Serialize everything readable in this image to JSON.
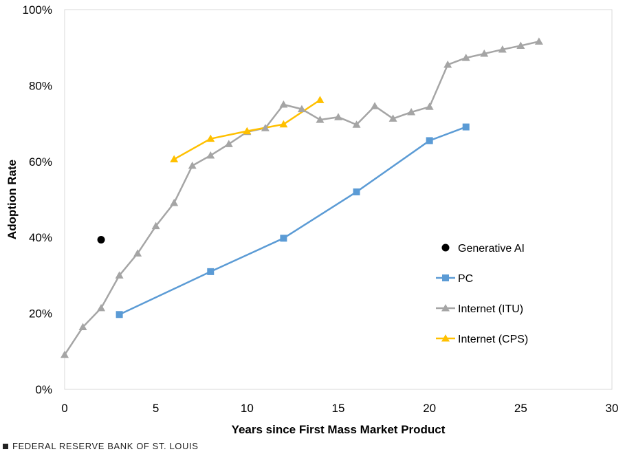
{
  "chart_data": {
    "type": "line",
    "xlabel": "Years since First Mass Market Product",
    "ylabel": "Adoption Rate",
    "xlim": [
      0,
      30
    ],
    "ylim": [
      0,
      100
    ],
    "x_ticks": [
      0,
      5,
      10,
      15,
      20,
      25,
      30
    ],
    "y_ticks": [
      "0%",
      "20%",
      "40%",
      "60%",
      "80%",
      "100%"
    ],
    "grid": false,
    "legend_position": "right",
    "series": [
      {
        "name": "Generative AI",
        "marker": "circle",
        "color": "#000000",
        "line": false,
        "points": [
          [
            2,
            39.4
          ]
        ]
      },
      {
        "name": "PC",
        "marker": "square",
        "color": "#5B9BD5",
        "line": true,
        "points": [
          [
            3,
            19.7
          ],
          [
            8,
            31.0
          ],
          [
            12,
            39.8
          ],
          [
            16,
            52.0
          ],
          [
            20,
            65.5
          ],
          [
            22,
            69.1
          ]
        ]
      },
      {
        "name": "Internet (ITU)",
        "marker": "triangle",
        "color": "#A5A5A5",
        "line": true,
        "points": [
          [
            0,
            9.1
          ],
          [
            1,
            16.4
          ],
          [
            2,
            21.4
          ],
          [
            3,
            30.0
          ],
          [
            4,
            35.8
          ],
          [
            5,
            43.0
          ],
          [
            6,
            49.1
          ],
          [
            7,
            58.9
          ],
          [
            8,
            61.6
          ],
          [
            9,
            64.6
          ],
          [
            10,
            67.8
          ],
          [
            11,
            68.8
          ],
          [
            12,
            75.0
          ],
          [
            13,
            73.8
          ],
          [
            14,
            71.0
          ],
          [
            15,
            71.7
          ],
          [
            16,
            69.7
          ],
          [
            17,
            74.6
          ],
          [
            18,
            71.3
          ],
          [
            19,
            73.0
          ],
          [
            20,
            74.4
          ],
          [
            21,
            85.5
          ],
          [
            22,
            87.3
          ],
          [
            23,
            88.4
          ],
          [
            24,
            89.5
          ],
          [
            25,
            90.5
          ],
          [
            26,
            91.6
          ]
        ]
      },
      {
        "name": "Internet (CPS)",
        "marker": "triangle",
        "color": "#FFC000",
        "line": true,
        "points": [
          [
            6,
            60.6
          ],
          [
            8,
            66.0
          ],
          [
            10,
            68.0
          ],
          [
            12,
            69.8
          ],
          [
            14,
            76.2
          ]
        ]
      }
    ]
  },
  "footer": {
    "text": "FEDERAL RESERVE BANK OF ST. LOUIS"
  }
}
